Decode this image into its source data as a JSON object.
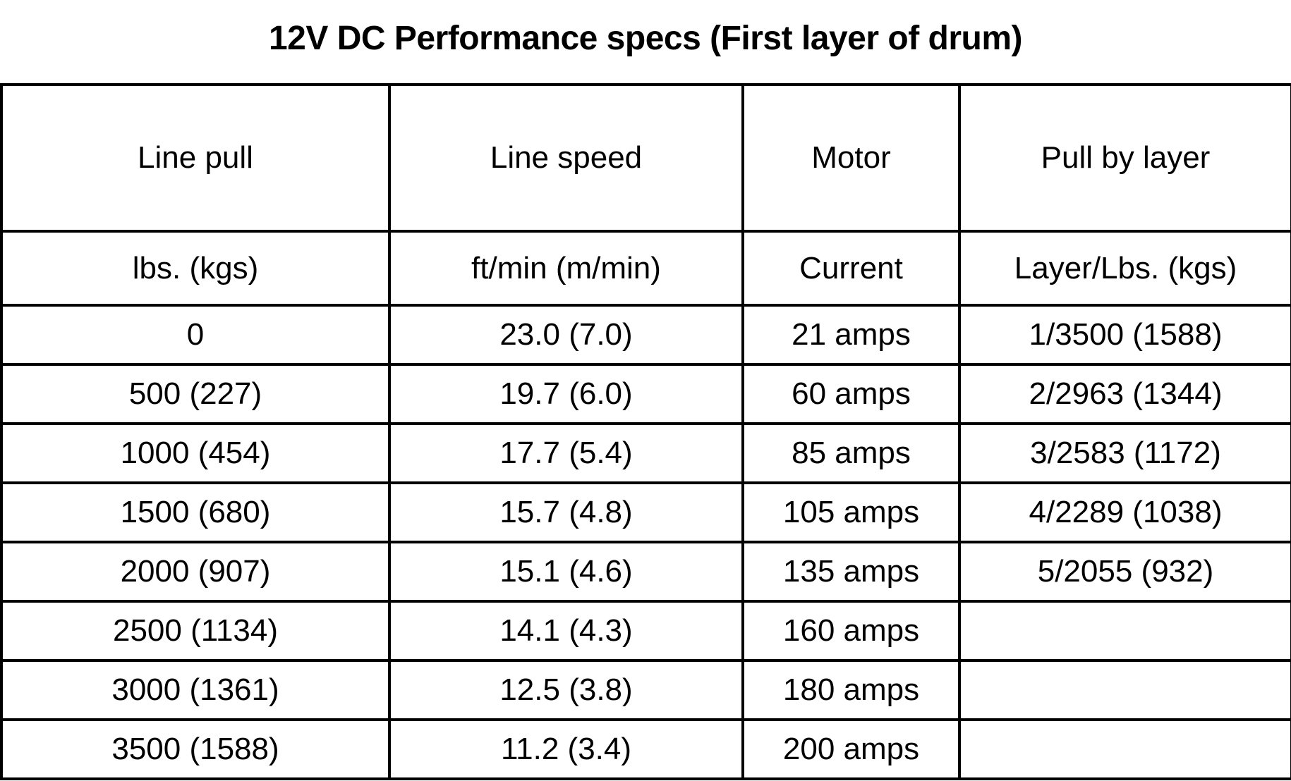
{
  "title": "12V DC Performance specs (First layer of drum)",
  "header_row_1": [
    "Line pull",
    "Line speed",
    "Motor",
    "Pull by layer"
  ],
  "header_row_2": [
    "lbs. (kgs)",
    "ft/min (m/min)",
    "Current",
    "Layer/Lbs. (kgs)"
  ],
  "rows": [
    [
      "0",
      "23.0 (7.0)",
      "21 amps",
      "1/3500 (1588)"
    ],
    [
      "500 (227)",
      "19.7 (6.0)",
      "60 amps",
      "2/2963 (1344)"
    ],
    [
      "1000 (454)",
      "17.7 (5.4)",
      "85 amps",
      "3/2583 (1172)"
    ],
    [
      "1500 (680)",
      "15.7 (4.8)",
      "105 amps",
      "4/2289 (1038)"
    ],
    [
      "2000 (907)",
      "15.1 (4.6)",
      "135 amps",
      "5/2055 (932)"
    ],
    [
      "2500 (1134)",
      "14.1 (4.3)",
      "160 amps",
      ""
    ],
    [
      "3000 (1361)",
      "12.5 (3.8)",
      "180 amps",
      ""
    ],
    [
      "3500 (1588)",
      "11.2 (3.4)",
      "200 amps",
      ""
    ]
  ]
}
